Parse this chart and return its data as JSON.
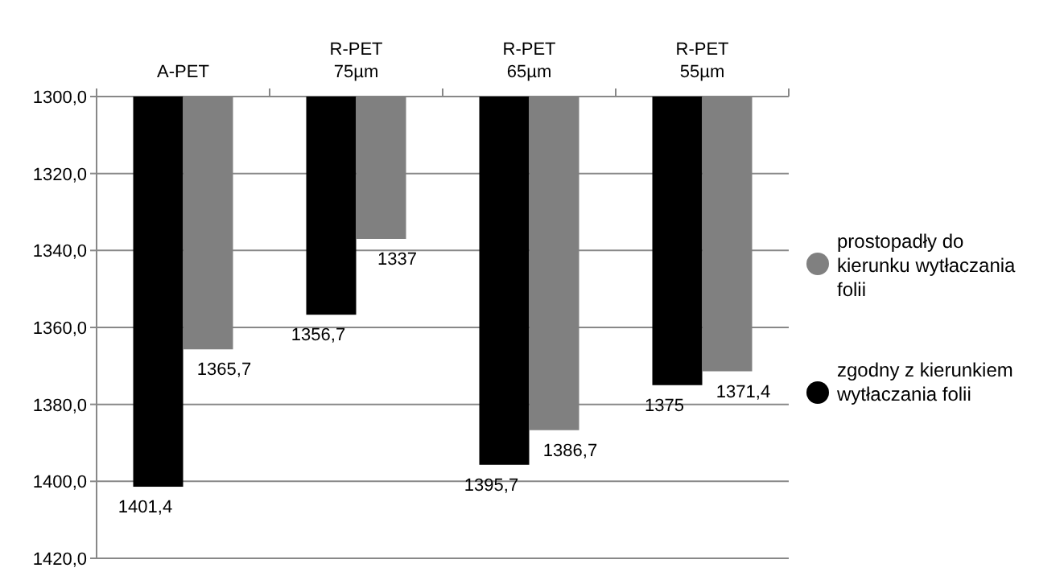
{
  "chart_data": {
    "type": "bar",
    "categories": [
      "A-PET",
      "R-PET\n75µm",
      "R-PET\n65µm",
      "R-PET\n55µm"
    ],
    "series": [
      {
        "name": "zgodny z kierunkiem\nwytłaczania folii",
        "color": "#000000",
        "values": [
          1401.4,
          1356.7,
          1395.7,
          1375
        ],
        "value_labels": [
          "1401,4",
          "1356,7",
          "1395,7",
          "1375"
        ]
      },
      {
        "name": "prostopadły do\nkierunku wytłaczania\nfolii",
        "color": "#808080",
        "values": [
          1365.7,
          1337,
          1386.7,
          1371.4
        ],
        "value_labels": [
          "1365,7",
          "1337",
          "1386,7",
          "1371,4"
        ]
      }
    ],
    "ylim": [
      1420,
      1300
    ],
    "yticks": [
      {
        "value": 1300,
        "label": "1300,0"
      },
      {
        "value": 1320,
        "label": "1320,0"
      },
      {
        "value": 1340,
        "label": "1340,0"
      },
      {
        "value": 1360,
        "label": "1360,0"
      },
      {
        "value": 1380,
        "label": "1380,0"
      },
      {
        "value": 1400,
        "label": "1400,0"
      },
      {
        "value": 1420,
        "label": "1420,0"
      }
    ],
    "grid": "y",
    "legend": "right"
  }
}
